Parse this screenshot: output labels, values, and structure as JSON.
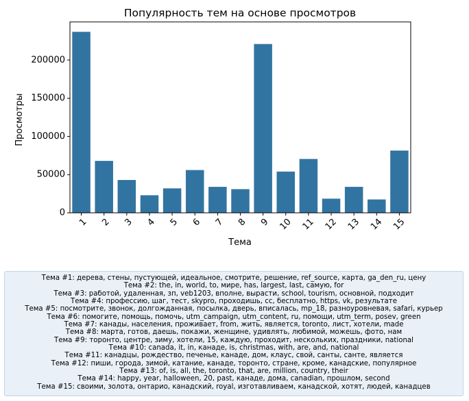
{
  "chart_data": {
    "type": "bar",
    "title": "Популярность тем на основе просмотров",
    "xlabel": "Тема",
    "ylabel": "Просмотры",
    "categories": [
      "1",
      "2",
      "3",
      "4",
      "5",
      "6",
      "7",
      "8",
      "9",
      "10",
      "11",
      "12",
      "13",
      "14",
      "15"
    ],
    "values": [
      237000,
      68000,
      43000,
      23000,
      32000,
      56000,
      34000,
      31000,
      221000,
      54000,
      70500,
      18500,
      34000,
      17500,
      81500
    ],
    "ylim": [
      0,
      250000
    ],
    "yticks": [
      0,
      50000,
      100000,
      150000,
      200000
    ],
    "ytick_labels": [
      "0",
      "50000",
      "100000",
      "150000",
      "200000"
    ],
    "bar_color": "#3274a1",
    "grid": false
  },
  "legend": {
    "placement": "bottom",
    "lines": [
      "Тема #1: дерева, стены, пустующей, идеальное, смотрите, решение, ref_source, карта, ga_den_ru, цену",
      "Тема #2: the, in, world, to, мире, has, largest, last, самую, for",
      "Тема #3: работой, удаленная, зп, veb1203, вполне, вырасти, school, tourism, основной, подходит",
      "Тема #4: профессию, шаг, тест, skypro, проходишь, cc, бесплатно, https, vk, результате",
      "Тема #5: посмотрите, звонок, долгожданная, посылка, дверь, вписалась, mp_18, разноуровневая, safari, курьер",
      "Тема #6: помогите, помощь, помочь, utm_campaign, utm_content, ru, помощи, utm_term, posev, green",
      "Тема #7: канады, населения, проживает, from, жить, является, toronto, лист, хотели, made",
      "Тема #8: марта, готов, даешь, покажи, женщине, удивлять, любимой, можешь, фото, нам",
      "Тема #9: торонто, центре, зиму, хотели, 15, каждую, проходит, нескольких, праздники, national",
      "Тема #10: canada, it, in, канаде, is, christmas, with, are, and, national",
      "Тема #11: канадцы, рождество, печенье, канаде, дом, клаус, свой, санты, санте, является",
      "Тема #12: пиши, города, зимой, катание, канаде, торонто, стране, кроме, канадские, популярное",
      "Тема #13: of, is, all, the, toronto, that, are, million, country, their",
      "Тема #14: happy, year, halloween, 20, past, канаде, дома, canadian, прошлом, second",
      "Тема #15: своими, золота, онтарио, канадский, royal, изготавливаем, канадской, хотят, людей, канадцев"
    ]
  }
}
